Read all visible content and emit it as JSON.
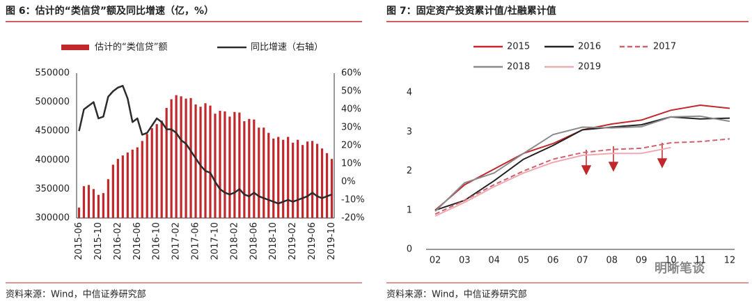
{
  "chart_data": [
    {
      "type": "combo",
      "title": "图 6：估计的“类信贷”额及同比增速（亿，%）",
      "categories": [
        "2015-06",
        null,
        null,
        null,
        "2015-10",
        null,
        null,
        null,
        "2016-02",
        null,
        null,
        null,
        "2016-06",
        null,
        null,
        null,
        "2016-10",
        null,
        null,
        null,
        "2017-02",
        null,
        null,
        null,
        "2017-06",
        null,
        null,
        null,
        "2017-10",
        null,
        null,
        null,
        "2018-02",
        null,
        null,
        null,
        "2018-06",
        null,
        null,
        null,
        "2018-10",
        null,
        null,
        null,
        "2019-02",
        null,
        null,
        null,
        "2019-06",
        null,
        null,
        null,
        "2019-10"
      ],
      "series": [
        {
          "name": "估计的“类信贷”额",
          "type": "bar",
          "color": "#c0282c",
          "values": [
            318000,
            355000,
            357000,
            350000,
            340000,
            343000,
            367000,
            392000,
            402000,
            408000,
            413000,
            418000,
            422000,
            433000,
            445000,
            455000,
            462000,
            468000,
            490000,
            505000,
            512000,
            510000,
            506000,
            507000,
            496000,
            492000,
            498000,
            494000,
            480000,
            485000,
            484000,
            475000,
            483000,
            482000,
            467000,
            471000,
            470000,
            456000,
            456000,
            447000,
            437000,
            440000,
            435000,
            440000,
            430000,
            435000,
            426000,
            432000,
            433000,
            428000,
            420000,
            412000,
            402000
          ]
        },
        {
          "name": "同比增速（右轴）",
          "type": "line",
          "axis": "y2",
          "color": "#2b2b2b",
          "values": [
            28,
            40,
            42,
            44,
            35,
            36,
            47,
            50,
            52,
            53,
            46,
            33,
            35,
            26,
            27,
            31,
            35,
            33,
            29,
            29,
            27,
            23,
            21,
            17,
            13,
            9,
            6,
            5,
            0,
            -4,
            -6,
            -7,
            -6,
            -4,
            -7,
            -8,
            -6,
            -8,
            -9,
            -10,
            -11,
            -12,
            -11,
            -10,
            -11,
            -10,
            -9,
            -8,
            -6,
            -8,
            -9,
            -8,
            -7
          ]
        }
      ],
      "ylim": [
        300000,
        550000
      ],
      "yticks": [
        300000,
        350000,
        400000,
        450000,
        500000,
        550000
      ],
      "y2lim": [
        -20,
        60
      ],
      "y2ticks": [
        {
          "value": -20,
          "label": "-20%"
        },
        {
          "value": -10,
          "label": "-10%"
        },
        {
          "value": 0,
          "label": "0%"
        },
        {
          "value": 10,
          "label": "10%"
        },
        {
          "value": 20,
          "label": "20%"
        },
        {
          "value": 30,
          "label": "30%"
        },
        {
          "value": 40,
          "label": "40%"
        },
        {
          "value": 50,
          "label": "50%"
        },
        {
          "value": 60,
          "label": "60%"
        }
      ],
      "source": "资料来源：Wind，中信证券研究部"
    },
    {
      "type": "line",
      "title": "图 7：固定资产投资累计值/社融累计值",
      "categories": [
        "02",
        "03",
        "04",
        "05",
        "06",
        "07",
        "08",
        "09",
        "10",
        "11",
        "12"
      ],
      "series": [
        {
          "name": "2015",
          "color": "#c0282c",
          "values": [
            1.0,
            1.65,
            2.05,
            2.45,
            2.7,
            3.05,
            3.2,
            3.3,
            3.55,
            3.68,
            3.6
          ]
        },
        {
          "name": "2016",
          "color": "#222222",
          "values": [
            1.0,
            1.25,
            1.75,
            2.3,
            2.65,
            3.05,
            3.12,
            3.18,
            3.38,
            3.33,
            3.35
          ]
        },
        {
          "name": "2017",
          "color": "#d0606c",
          "dash": true,
          "values": [
            0.9,
            1.25,
            1.65,
            2.0,
            2.3,
            2.47,
            2.55,
            2.58,
            2.72,
            2.75,
            2.82
          ]
        },
        {
          "name": "2018",
          "color": "#8a8a8a",
          "values": [
            0.97,
            1.7,
            1.95,
            2.45,
            2.93,
            3.12,
            3.1,
            3.13,
            3.38,
            3.4,
            3.27
          ]
        },
        {
          "name": "2019",
          "color": "#f0a8b0",
          "values": [
            0.85,
            1.2,
            1.6,
            1.95,
            2.22,
            2.4,
            2.45,
            2.45,
            2.6,
            null,
            null
          ]
        }
      ],
      "ylim": [
        0,
        4
      ],
      "yticks": [
        0,
        1,
        2,
        3,
        4
      ],
      "source": "资料来源：Wind，中信证券研究部"
    }
  ],
  "watermark": "明晰笔谈"
}
